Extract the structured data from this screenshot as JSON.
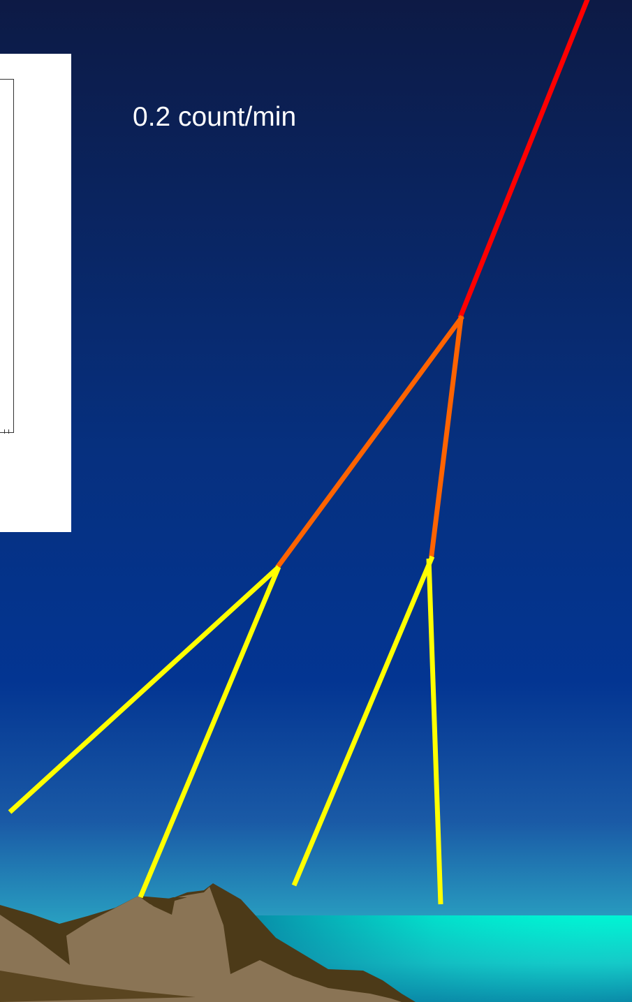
{
  "rate_label": "0.2 count/min",
  "colors": {
    "sky_top": "#0d1a45",
    "sky_mid": "#033592",
    "sky_horizon": "#2aa5c3",
    "sea": "#00f5d4",
    "sea_shore": "#0a8aa8",
    "mountain_dark": "#4c3a18",
    "mountain_light": "#8a7455",
    "primary_track": "#ff0000",
    "secondary_track": "#ff6300",
    "tertiary_track": "#ffff00",
    "inset_background": "#ffffff"
  },
  "icons": {
    "mountain": "mountain-icon",
    "sea": "sea-icon"
  }
}
